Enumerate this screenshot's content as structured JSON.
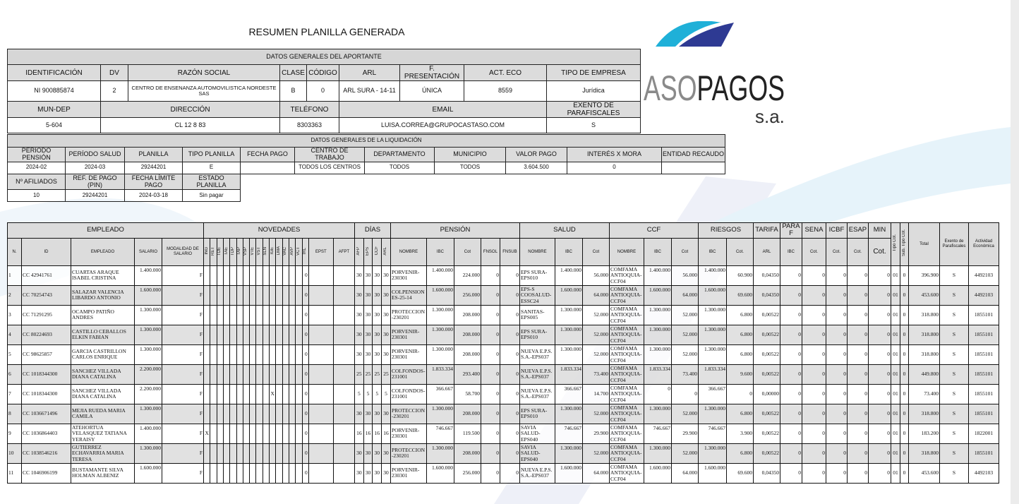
{
  "title": "RESUMEN PLANILLA GENERADA",
  "logo": {
    "text": "ASOPAGOS",
    "suffix": "s.a.",
    "colors": {
      "light_blue": "#1fb0d8",
      "dark_blue": "#2e3a93",
      "gray": "#8a8a8a",
      "black": "#222222"
    }
  },
  "aportante": {
    "title": "DATOS GENERALES DEL APORTANTE",
    "headers1": [
      "IDENTIFICACIÓN",
      "DV",
      "RAZÓN SOCIAL",
      "CLASE",
      "CÓDIGO",
      "ARL",
      "F. PRESENTACIÓN",
      "ACT. ECO",
      "TIPO DE EMPRESA"
    ],
    "values1": [
      "NI 900885874",
      "2",
      "CENTRO DE ENSENANZA AUTOMOVILISTICA NORDESTE SAS",
      "B",
      "0",
      "ARL SURA - 14-11",
      "ÚNICA",
      "8559",
      "Jurídica"
    ],
    "headers2": [
      "MUN-DEP",
      "DIRECCIÓN",
      "TELÉFONO",
      "EMAIL",
      "EXENTO DE PARAFISCALES"
    ],
    "values2": [
      "5-604",
      "CL 12 8 83",
      "8303363",
      "LUISA.CORREA@GRUPOCASTASO.COM",
      "S"
    ]
  },
  "liquidacion": {
    "title": "DATOS GENERALES DE LA LIQUIDACIÓN",
    "headers1": [
      "PERÍODO PENSIÓN",
      "PERÍODO SALUD",
      "PLANILLA",
      "TIPO PLANILLA",
      "FECHA PAGO",
      "CENTRO DE TRABAJO",
      "DEPARTAMENTO",
      "MUNICIPIO",
      "VALOR PAGO",
      "INTERÉS X MORA",
      "ENTIDAD RECAUDO"
    ],
    "values1": [
      "2024-02",
      "2024-03",
      "29244201",
      "E",
      "",
      "TODOS LOS CENTROS",
      "TODOS",
      "TODOS",
      "3.604.500",
      "0",
      ""
    ],
    "headers2": [
      "Nº AFILIADOS",
      "REF. DE PAGO (PIN)",
      "FECHA LÍMITE PAGO",
      "ESTADO PLANILLA"
    ],
    "values2": [
      "10",
      "29244201",
      "2024-03-18",
      "Sin pagar"
    ]
  },
  "employees": {
    "groups": [
      "EMPLEADO",
      "NOVEDADES",
      "DÍAS",
      "PENSIÓN",
      "SALUD",
      "CCF",
      "RIESGOS",
      "TARIFA",
      "PARAF",
      "SENA",
      "ICBF",
      "ESAP",
      "MIN"
    ],
    "columns": [
      "N.",
      "ID",
      "EMPLEADO",
      "SALARIO",
      "MODALIDAD DE SALARIO",
      "ING",
      "RET",
      "TDE",
      "TAE",
      "TDP",
      "TAP",
      "VSP",
      "VTE",
      "VST",
      "SLN",
      "IGE",
      "LMA",
      "VAC",
      "AVP",
      "VCT",
      "IRL",
      "EPST",
      "AFPT",
      "AFP",
      "EPS",
      "CCF",
      "ARL",
      "NOMBRE",
      "IBC",
      "Cot",
      "FNSOL",
      "FNSUB",
      "NOMBRE",
      "IBC",
      "Cot",
      "NOMBRE",
      "IBC",
      "Cot",
      "IBC",
      "Cot.",
      "ARL",
      "IBC",
      "Cot.",
      "Cot.",
      "Cot.",
      "Cot.",
      "Tipo Cot.",
      "Sub. Tipo Cot.",
      "Total",
      "Exento de Parafiscales",
      "Actividad Económica"
    ],
    "rows": [
      [
        "1",
        "CC 42941761",
        "CUARTAS ARAQUE ISABEL CRISTINA",
        "1.400.000",
        "F",
        "",
        "",
        "",
        "",
        "",
        "",
        "",
        "",
        "",
        "",
        "",
        "",
        "",
        "",
        "",
        "0",
        "",
        "",
        "30",
        "30",
        "30",
        "30",
        "PORVENIR-230301",
        "1.400.000",
        "224.000",
        "0",
        "0",
        "EPS SURA-EPS010",
        "1.400.000",
        "56.000",
        "COMFAMA ANTIOQUIA-CCF04",
        "1.400.000",
        "56.000",
        "1.400.000",
        "60.900",
        "0,04350",
        "0",
        "0",
        "0",
        "0",
        "0",
        "01",
        "0",
        "396.900",
        "S",
        "4492103"
      ],
      [
        "2",
        "CC 70254743",
        "SALAZAR VALENCIA LIBARDO ANTONIO",
        "1.600.000",
        "F",
        "",
        "",
        "",
        "",
        "",
        "",
        "",
        "",
        "",
        "",
        "",
        "",
        "",
        "",
        "",
        "0",
        "",
        "",
        "30",
        "30",
        "30",
        "30",
        "COLPENSIONES-25-14",
        "1.600.000",
        "256.000",
        "0",
        "0",
        "EPS-S COOSALUD-ESSC24",
        "1.600.000",
        "64.000",
        "COMFAMA ANTIOQUIA-CCF04",
        "1.600.000",
        "64.000",
        "1.600.000",
        "69.600",
        "0,04350",
        "0",
        "0",
        "0",
        "0",
        "0",
        "01",
        "0",
        "453.600",
        "S",
        "4492103"
      ],
      [
        "3",
        "CC 71291295",
        "OCAMPO PATIÑO ANDRES",
        "1.300.000",
        "F",
        "",
        "",
        "",
        "",
        "",
        "",
        "",
        "",
        "",
        "",
        "",
        "",
        "",
        "",
        "",
        "0",
        "",
        "",
        "30",
        "30",
        "30",
        "30",
        "PROTECCION-230201",
        "1.300.000",
        "208.000",
        "0",
        "0",
        "SANITAS-EPS005",
        "1.300.000",
        "52.000",
        "COMFAMA ANTIOQUIA-CCF04",
        "1.300.000",
        "52.000",
        "1.300.000",
        "6.800",
        "0,00522",
        "0",
        "0",
        "0",
        "0",
        "0",
        "01",
        "0",
        "318.800",
        "S",
        "1855101"
      ],
      [
        "4",
        "CC 80224693",
        "CASTILLO CEBALLOS ELKIN FABIAN",
        "1.300.000",
        "F",
        "",
        "",
        "",
        "",
        "",
        "",
        "",
        "",
        "",
        "",
        "",
        "",
        "",
        "",
        "",
        "0",
        "",
        "",
        "30",
        "30",
        "30",
        "30",
        "PORVENIR-230301",
        "1.300.000",
        "208.000",
        "0",
        "0",
        "EPS SURA-EPS010",
        "1.300.000",
        "52.000",
        "COMFAMA ANTIOQUIA-CCF04",
        "1.300.000",
        "52.000",
        "1.300.000",
        "6.800",
        "0,00522",
        "0",
        "0",
        "0",
        "0",
        "0",
        "01",
        "0",
        "318.800",
        "S",
        "1855101"
      ],
      [
        "5",
        "CC 98625857",
        "GARCIA CASTRILLON CARLOS ENRIQUE",
        "1.300.000",
        "F",
        "",
        "",
        "",
        "",
        "",
        "",
        "",
        "",
        "",
        "",
        "",
        "",
        "",
        "",
        "",
        "0",
        "",
        "",
        "30",
        "30",
        "30",
        "30",
        "PORVENIR-230301",
        "1.300.000",
        "208.000",
        "0",
        "0",
        "NUEVA E.P.S. S.A.-EPS037",
        "1.300.000",
        "52.000",
        "COMFAMA ANTIOQUIA-CCF04",
        "1.300.000",
        "52.000",
        "1.300.000",
        "6.800",
        "0,00522",
        "0",
        "0",
        "0",
        "0",
        "0",
        "01",
        "0",
        "318.800",
        "S",
        "1855101"
      ],
      [
        "6",
        "CC 1018344300",
        "SANCHEZ VILLADA DIANA CATALINA",
        "2.200.000",
        "F",
        "",
        "",
        "",
        "",
        "",
        "",
        "",
        "",
        "",
        "",
        "",
        "",
        "",
        "",
        "",
        "0",
        "",
        "",
        "25",
        "25",
        "25",
        "25",
        "COLFONDOS-231001",
        "1.833.334",
        "293.400",
        "0",
        "0",
        "NUEVA E.P.S. S.A.-EPS037",
        "1.833.334",
        "73.400",
        "COMFAMA ANTIOQUIA-CCF04",
        "1.833.334",
        "73.400",
        "1.833.334",
        "9.600",
        "0,00522",
        "0",
        "0",
        "0",
        "0",
        "0",
        "01",
        "0",
        "449.800",
        "S",
        "1855101"
      ],
      [
        "7",
        "CC 1018344300",
        "SANCHEZ VILLADA DIANA CATALINA",
        "2.200.000",
        "F",
        "",
        "",
        "",
        "",
        "",
        "",
        "",
        "",
        "",
        "",
        "X",
        "",
        "",
        "",
        "",
        "0",
        "",
        "",
        "5",
        "5",
        "5",
        "5",
        "COLFONDOS-231001",
        "366.667",
        "58.700",
        "0",
        "0",
        "NUEVA E.P.S. S.A.-EPS037",
        "366.667",
        "14.700",
        "COMFAMA ANTIOQUIA-CCF04",
        "0",
        "0",
        "366.667",
        "0",
        "0,00000",
        "0",
        "0",
        "0",
        "0",
        "0",
        "01",
        "0",
        "73.400",
        "S",
        "1855101"
      ],
      [
        "8",
        "CC 1036671496",
        "MEJIA RUEDA MARIA CAMILA",
        "1.300.000",
        "F",
        "",
        "",
        "",
        "",
        "",
        "",
        "",
        "",
        "",
        "",
        "",
        "",
        "",
        "",
        "",
        "0",
        "",
        "",
        "30",
        "30",
        "30",
        "30",
        "PROTECCION-230201",
        "1.300.000",
        "208.000",
        "0",
        "0",
        "EPS SURA-EPS010",
        "1.300.000",
        "52.000",
        "COMFAMA ANTIOQUIA-CCF04",
        "1.300.000",
        "52.000",
        "1.300.000",
        "6.800",
        "0,00522",
        "0",
        "0",
        "0",
        "0",
        "0",
        "01",
        "0",
        "318.800",
        "S",
        "1855101"
      ],
      [
        "9",
        "CC 1036864403",
        "ATEHORTUA VELASQUEZ TATIANA YERAISY",
        "1.400.000",
        "F",
        "X",
        "",
        "",
        "",
        "",
        "",
        "",
        "",
        "",
        "",
        "",
        "",
        "",
        "",
        "",
        "0",
        "",
        "",
        "16",
        "16",
        "16",
        "16",
        "PORVENIR-230301",
        "746.667",
        "119.500",
        "0",
        "0",
        "SAVIA SALUD-EPS040",
        "746.667",
        "29.900",
        "COMFAMA ANTIOQUIA-CCF04",
        "746.667",
        "29.900",
        "746.667",
        "3.900",
        "0,00522",
        "0",
        "0",
        "0",
        "0",
        "0",
        "01",
        "0",
        "183.200",
        "S",
        "1822001"
      ],
      [
        "10",
        "CC 1038546216",
        "GUTIERREZ ECHAVARRIA MARIA TERESA",
        "1.300.000",
        "F",
        "",
        "",
        "",
        "",
        "",
        "",
        "",
        "",
        "",
        "",
        "",
        "",
        "",
        "",
        "",
        "0",
        "",
        "",
        "30",
        "30",
        "30",
        "30",
        "PROTECCION-230201",
        "1.300.000",
        "208.000",
        "0",
        "0",
        "SAVIA SALUD-EPS040",
        "1.300.000",
        "52.000",
        "COMFAMA ANTIOQUIA-CCF04",
        "1.300.000",
        "52.000",
        "1.300.000",
        "6.800",
        "0,00522",
        "0",
        "0",
        "0",
        "0",
        "0",
        "01",
        "0",
        "318.800",
        "S",
        "1855101"
      ],
      [
        "11",
        "CC 1046906199",
        "BUSTAMANTE SILVA HOLMAN ALBENIZ",
        "1.600.000",
        "F",
        "",
        "",
        "",
        "",
        "",
        "",
        "",
        "",
        "",
        "",
        "",
        "",
        "",
        "",
        "",
        "0",
        "",
        "",
        "30",
        "30",
        "30",
        "30",
        "PORVENIR-230301",
        "1.600.000",
        "256.000",
        "0",
        "0",
        "NUEVA E.P.S. S.A.-EPS037",
        "1.600.000",
        "64.000",
        "COMFAMA ANTIOQUIA-CCF04",
        "1.600.000",
        "64.000",
        "1.600.000",
        "69.600",
        "0,04350",
        "0",
        "0",
        "0",
        "0",
        "0",
        "01",
        "0",
        "453.600",
        "S",
        "4492103"
      ]
    ]
  }
}
